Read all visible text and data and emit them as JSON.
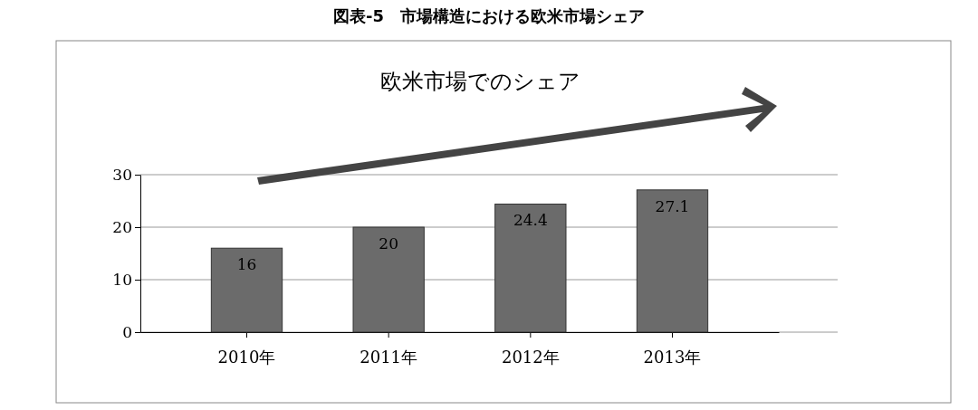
{
  "chart_data": {
    "type": "bar",
    "title": "図表-5　市場構造における欧米市場シェア",
    "subtitle": "欧米市場でのシェア",
    "categories": [
      "2010年",
      "2011年",
      "2012年",
      "2013年"
    ],
    "values": [
      16,
      20,
      24.4,
      27.1
    ],
    "color": "#6b6b6b",
    "ylim": [
      0,
      30
    ],
    "yticks": [
      0,
      10,
      20,
      30
    ],
    "grid": "y",
    "data_labels": true
  }
}
